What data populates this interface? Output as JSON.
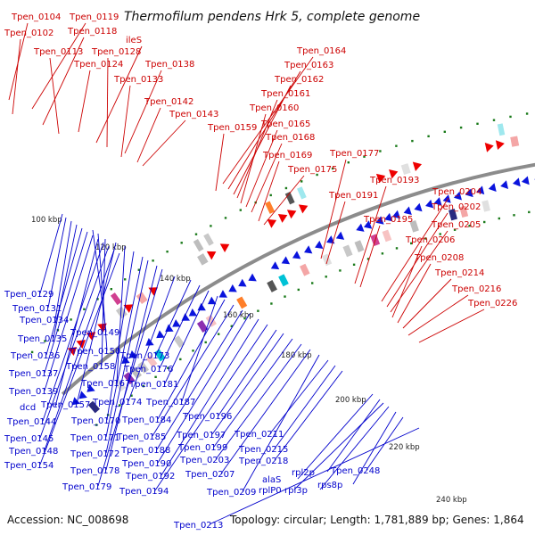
{
  "title": "Thermofilum pendens Hrk 5, complete genome",
  "accession": "Accession: NC_008698",
  "stats": "Topology: circular; Length: 1,781,889 bp; Genes: 1,864",
  "colors": {
    "outer_label": "#cc0000",
    "inner_label": "#0000cc",
    "backbone": "#8c8c8c",
    "outer_gene": "#ee0000",
    "inner_gene": "#0a14dd",
    "ticks_dots": "#1a7a1a"
  },
  "ticks": [
    {
      "label": "100 kbp"
    },
    {
      "label": "120 kbp"
    },
    {
      "label": "140 kbp"
    },
    {
      "label": "160 kbp"
    },
    {
      "label": "180 kbp"
    },
    {
      "label": "200 kbp"
    },
    {
      "label": "220 kbp"
    },
    {
      "label": "240 kbp"
    }
  ],
  "outer_labels": [
    {
      "text": "Tpen_0104"
    },
    {
      "text": "Tpen_0119"
    },
    {
      "text": "Tpen_0102"
    },
    {
      "text": "Tpen_0118"
    },
    {
      "text": "ileS"
    },
    {
      "text": "Tpen_0113"
    },
    {
      "text": "Tpen_0128"
    },
    {
      "text": "Tpen_0124"
    },
    {
      "text": "Tpen_0138"
    },
    {
      "text": "Tpen_0133"
    },
    {
      "text": "Tpen_0142"
    },
    {
      "text": "Tpen_0143"
    },
    {
      "text": "Tpen_0164"
    },
    {
      "text": "Tpen_0163"
    },
    {
      "text": "Tpen_0162"
    },
    {
      "text": "Tpen_0161"
    },
    {
      "text": "Tpen_0160"
    },
    {
      "text": "Tpen_0159"
    },
    {
      "text": "Tpen_0165"
    },
    {
      "text": "Tpen_0168"
    },
    {
      "text": "Tpen_0169"
    },
    {
      "text": "Tpen_0175"
    },
    {
      "text": "Tpen_0177"
    },
    {
      "text": "Tpen_0193"
    },
    {
      "text": "Tpen_0191"
    },
    {
      "text": "Tpen_0204"
    },
    {
      "text": "Tpen_0202"
    },
    {
      "text": "Tpen_0195"
    },
    {
      "text": "Tpen_0205"
    },
    {
      "text": "Tpen_0206"
    },
    {
      "text": "Tpen_0208"
    },
    {
      "text": "Tpen_0214"
    },
    {
      "text": "Tpen_0216"
    },
    {
      "text": "Tpen_0226"
    }
  ],
  "inner_labels": [
    {
      "text": "Tpen_0129"
    },
    {
      "text": "Tpen_0131"
    },
    {
      "text": "Tpen_0134"
    },
    {
      "text": "Tpen_0135"
    },
    {
      "text": "Tpen_0149"
    },
    {
      "text": "Tpen_0150"
    },
    {
      "text": "Tpen_0136"
    },
    {
      "text": "Tpen_0158"
    },
    {
      "text": "Tpen_0137"
    },
    {
      "text": "Tpen_0167"
    },
    {
      "text": "Tpen_0139"
    },
    {
      "text": "Tpen_0157"
    },
    {
      "text": "dcd"
    },
    {
      "text": "Tpen_0144"
    },
    {
      "text": "Tpen_0170"
    },
    {
      "text": "Tpen_0145"
    },
    {
      "text": "Tpen_0171"
    },
    {
      "text": "Tpen_0148"
    },
    {
      "text": "Tpen_0172"
    },
    {
      "text": "Tpen_0154"
    },
    {
      "text": "Tpen_0178"
    },
    {
      "text": "Tpen_0179"
    },
    {
      "text": "Tpen_0173"
    },
    {
      "text": "Tpen_0176"
    },
    {
      "text": "Tpen_0181"
    },
    {
      "text": "Tpen_0174"
    },
    {
      "text": "Tpen_0187"
    },
    {
      "text": "Tpen_0184"
    },
    {
      "text": "Tpen_0185"
    },
    {
      "text": "Tpen_0188"
    },
    {
      "text": "Tpen_0190"
    },
    {
      "text": "Tpen_0192"
    },
    {
      "text": "Tpen_0194"
    },
    {
      "text": "Tpen_0196"
    },
    {
      "text": "Tpen_0197"
    },
    {
      "text": "Tpen_0199"
    },
    {
      "text": "Tpen_0203"
    },
    {
      "text": "Tpen_0207"
    },
    {
      "text": "Tpen_0209"
    },
    {
      "text": "Tpen_0211"
    },
    {
      "text": "Tpen_0215"
    },
    {
      "text": "Tpen_0218"
    },
    {
      "text": "alaS"
    },
    {
      "text": "rpl2p"
    },
    {
      "text": "Tpen_0248"
    },
    {
      "text": "rplP0"
    },
    {
      "text": "rpl3p"
    },
    {
      "text": "rps8p"
    },
    {
      "text": "Tpen_0213"
    }
  ]
}
